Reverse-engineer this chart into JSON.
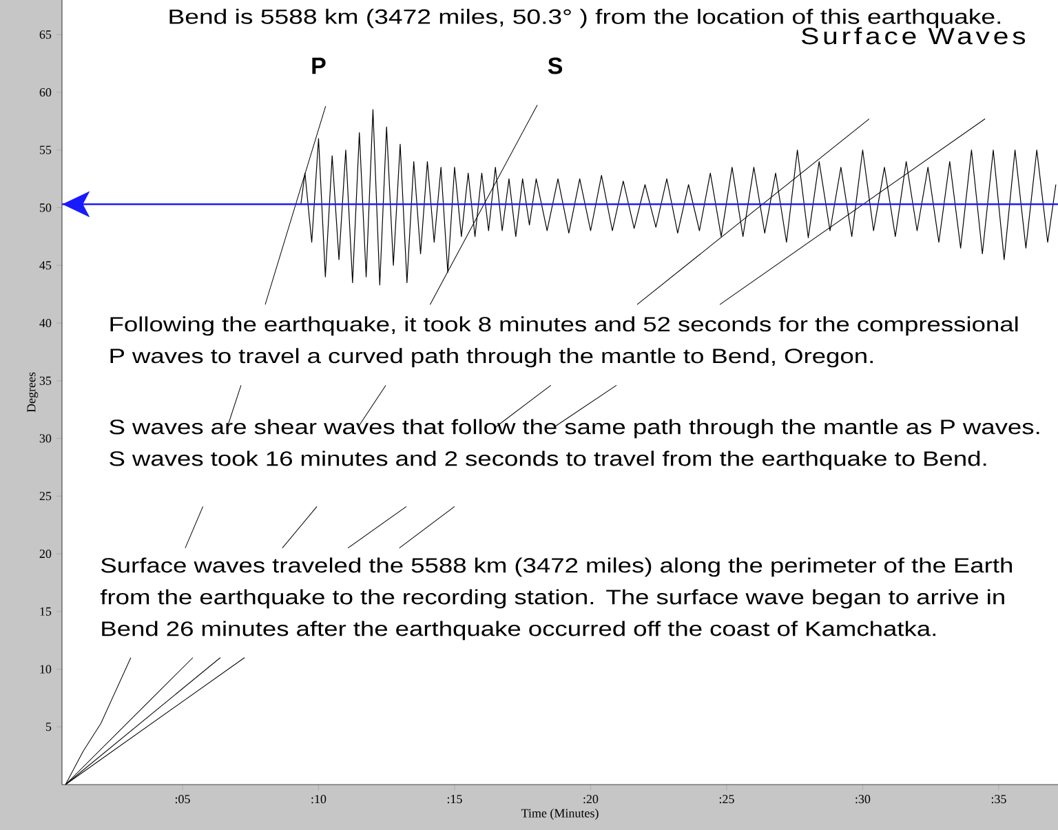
{
  "chart_data": {
    "type": "line",
    "title": "Bend is 5588 km (3472 miles, 50.3° ) from the location of this earthquake.",
    "xlabel": "Time  (Minutes)",
    "ylabel": "Degrees",
    "xlim": [
      0.57,
      37.18
    ],
    "ylim": [
      0,
      68
    ],
    "xticks": [
      {
        "value": 5,
        "label": ":05"
      },
      {
        "value": 10,
        "label": ":10"
      },
      {
        "value": 15,
        "label": ":15"
      },
      {
        "value": 20,
        "label": ":20"
      },
      {
        "value": 25,
        "label": ":25"
      },
      {
        "value": 30,
        "label": ":30"
      },
      {
        "value": 35,
        "label": ":35"
      }
    ],
    "yticks": [
      5,
      10,
      15,
      20,
      25,
      30,
      35,
      40,
      45,
      50,
      55,
      60,
      65
    ],
    "grid": false,
    "marker": "none",
    "series": [
      {
        "color": "#000000",
        "x": [
          0.7,
          1.35,
          2.0,
          3.1,
          3.2,
          5.1,
          5.75,
          5.9,
          6.65,
          7.15,
          7.3,
          8.04,
          10.26
        ],
        "values": [
          0,
          2.9,
          5.3,
          11.0,
          null,
          20.5,
          24.1,
          null,
          31.0,
          34.6,
          null,
          41.6,
          58.8
        ]
      },
      {
        "color": "#000000",
        "x": [
          0.7,
          5.38,
          5.5,
          8.67,
          9.94,
          10.1,
          11.46,
          12.47,
          12.6,
          14.1,
          18.04
        ],
        "values": [
          0,
          11.0,
          null,
          20.5,
          24.1,
          null,
          31.0,
          34.6,
          null,
          41.6,
          58.9
        ]
      },
      {
        "color": "#000000",
        "x": [
          0.7,
          6.39,
          6.5,
          11.08,
          13.23,
          13.4,
          16.52,
          18.54,
          18.7,
          21.71,
          30.24
        ],
        "values": [
          0,
          11.0,
          null,
          20.5,
          24.1,
          null,
          31.0,
          34.6,
          null,
          41.6,
          57.7
        ]
      },
      {
        "color": "#000000",
        "x": [
          0.7,
          7.28,
          7.4,
          12.97,
          15.0,
          15.2,
          18.67,
          20.95,
          21.1,
          24.75,
          34.5
        ],
        "values": [
          0,
          11.0,
          null,
          20.5,
          24.1,
          null,
          31.0,
          34.6,
          null,
          41.6,
          57.7
        ]
      },
      {
        "color": "#000000",
        "x": [
          9.35,
          9.5,
          9.75,
          10.0,
          10.25,
          10.5,
          10.75,
          11.0,
          11.25,
          11.5,
          11.75,
          12.0,
          12.25,
          12.5,
          12.75,
          13.0,
          13.25,
          13.5,
          13.75,
          14.0,
          14.25,
          14.5,
          14.75,
          15.0,
          15.25,
          15.5,
          15.75,
          16.0,
          16.25,
          16.5,
          16.75,
          17.0,
          17.25,
          17.5,
          17.75,
          18.0,
          18.4,
          18.8,
          19.2,
          19.6,
          20.0,
          20.4,
          20.8,
          21.2,
          21.6,
          22.0,
          22.4,
          22.8,
          23.2,
          23.6,
          24.0,
          24.4,
          24.8,
          25.2,
          25.6,
          26.0,
          26.4,
          26.8,
          27.2,
          27.6,
          28.0,
          28.4,
          28.8,
          29.2,
          29.6,
          30.0,
          30.4,
          30.8,
          31.2,
          31.6,
          32.0,
          32.4,
          32.8,
          33.2,
          33.6,
          34.0,
          34.4,
          34.8,
          35.2,
          35.6,
          36.0,
          36.4,
          36.8,
          37.1
        ],
        "values": [
          50.3,
          53,
          47,
          56,
          44,
          54.5,
          45.5,
          55,
          43.5,
          56.5,
          44,
          58.5,
          43.3,
          57,
          45,
          55.5,
          43.5,
          54,
          46,
          54,
          47,
          53.5,
          44.4,
          53.5,
          47.5,
          53,
          47.5,
          53,
          48,
          53.5,
          48,
          52.5,
          47.5,
          52.5,
          48.5,
          52.5,
          48,
          52.5,
          47.8,
          52.5,
          48,
          52.8,
          48,
          52.3,
          48.2,
          52,
          48.3,
          52.5,
          47.8,
          52,
          48,
          53,
          47.5,
          53.5,
          47.5,
          53.5,
          47.8,
          53,
          47,
          55,
          47.4,
          54,
          48,
          53.5,
          47.5,
          55,
          48,
          53.5,
          47.5,
          54,
          48,
          53.5,
          47,
          54,
          46.5,
          55,
          46,
          55,
          45.5,
          55,
          46.5,
          55,
          47,
          52
        ]
      }
    ],
    "ref_lines": [
      {
        "axis": "y",
        "value": 50.3,
        "color": "#1a1aff"
      }
    ],
    "annotations": [
      "P",
      "S",
      "Surface Waves",
      "Following the earthquake, it took 8 minutes and 52 seconds for the compressional P waves to travel a curved path through the mantle to Bend, Oregon.",
      "S waves are shear waves that follow the same path through the mantle as P waves. S waves took 16 minutes and 2 seconds to travel from the earthquake to Bend.",
      "Surface waves traveled the 5588 km (3472 miles) along the perimeter of the Earth from the earthquake to the recording station. The surface wave began to arrive in Bend 26 minutes after the earthquake occurred off the coast of Kamchatka."
    ]
  }
}
